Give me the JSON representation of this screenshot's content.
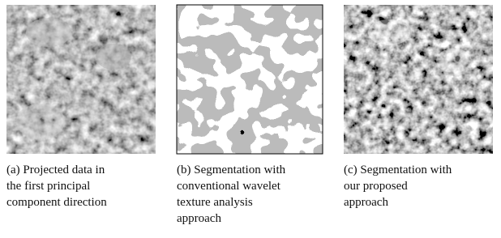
{
  "figures": [
    {
      "caption_lines": [
        "(a) Projected data in",
        "the first principal",
        "component direction"
      ]
    },
    {
      "caption_lines": [
        "(b) Segmentation with",
        "conventional wavelet",
        "texture analysis",
        "approach"
      ]
    },
    {
      "caption_lines": [
        "(c) Segmentation with",
        "our proposed",
        "approach"
      ]
    }
  ]
}
